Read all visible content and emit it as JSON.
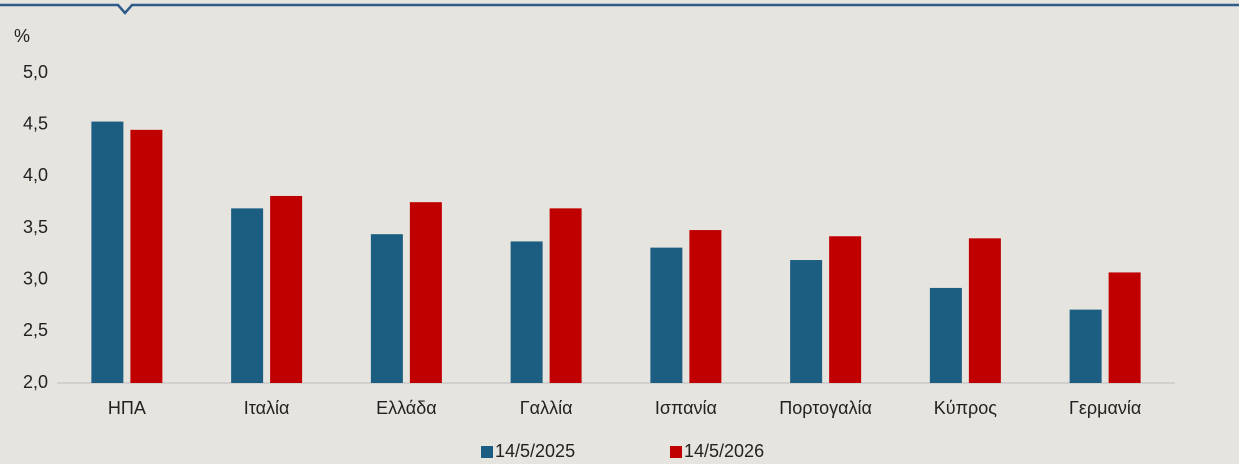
{
  "chart_data": {
    "type": "bar",
    "y_axis_label": "%",
    "categories": [
      "ΗΠΑ",
      "Ιταλία",
      "Ελλάδα",
      "Γαλλία",
      "Ισπανία",
      "Πορτογαλία",
      "Κύπρος",
      "Γερμανία"
    ],
    "series": [
      {
        "name": "14/5/2025",
        "color": "#1b5e82",
        "values": [
          4.53,
          3.69,
          3.44,
          3.37,
          3.31,
          3.19,
          2.92,
          2.71
        ]
      },
      {
        "name": "14/5/2026",
        "color": "#c00000",
        "values": [
          4.45,
          3.81,
          3.75,
          3.69,
          3.48,
          3.42,
          3.4,
          3.07
        ]
      }
    ],
    "ylim": [
      2.0,
      5.0
    ],
    "yticks": [
      {
        "value": 2.0,
        "label": "2,0"
      },
      {
        "value": 2.5,
        "label": "2,5"
      },
      {
        "value": 3.0,
        "label": "3,0"
      },
      {
        "value": 3.5,
        "label": "3,5"
      },
      {
        "value": 4.0,
        "label": "4,0"
      },
      {
        "value": 4.5,
        "label": "4,5"
      },
      {
        "value": 5.0,
        "label": "5,0"
      }
    ],
    "grid": false,
    "legend": "bottom"
  }
}
